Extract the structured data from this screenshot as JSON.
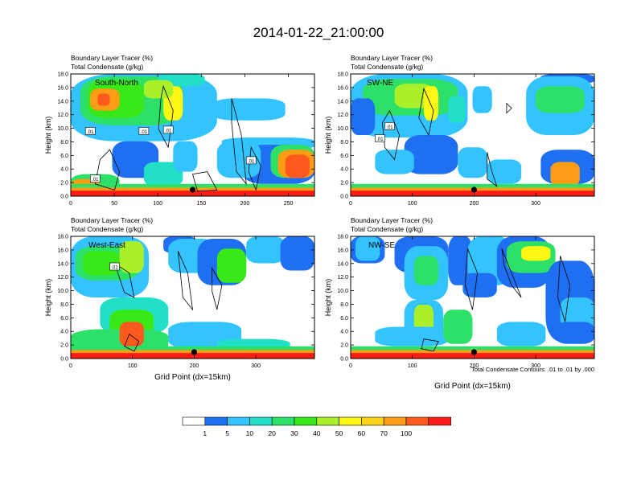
{
  "figure": {
    "title": "2014-01-22_21:00:00",
    "footnote": "Total Condensate Contours: .01 to .01 by .000",
    "colorbar": {
      "colors": [
        "#ffffff",
        "#1f6ff2",
        "#33c4ff",
        "#22e0c8",
        "#2de067",
        "#38e817",
        "#a9ef2a",
        "#fff713",
        "#ffd21a",
        "#ff9c16",
        "#ff5a1e",
        "#ff1c16"
      ],
      "labels": [
        "1",
        "5",
        "10",
        "20",
        "30",
        "40",
        "50",
        "60",
        "70",
        "100"
      ]
    }
  },
  "chart_data": [
    {
      "type": "heatmap",
      "panel": "South-North",
      "subtitle_line1": "Boundary Layer Tracer   (%)",
      "subtitle_line2": "Total Condensate   (g/kg)",
      "xlabel": "",
      "ylabel": "Height (km)",
      "xlim": [
        0,
        280
      ],
      "ylim": [
        0,
        18
      ],
      "xticks": [
        "0",
        "50",
        "100",
        "150",
        "200",
        "250"
      ],
      "xtick_values": [
        0,
        50,
        100,
        150,
        200,
        250
      ],
      "yticks": [
        "0.0",
        "2.0",
        "4.0",
        "6.0",
        "8.0",
        "10.0",
        "12.0",
        "14.0",
        "16.0",
        "18.0"
      ],
      "marker_x": 140,
      "contour_labels": [
        ".01",
        ".01",
        ".01",
        ".01",
        ".01"
      ]
    },
    {
      "type": "heatmap",
      "panel": "SW-NE",
      "subtitle_line1": "Boundary Layer Tracer   (%)",
      "subtitle_line2": "Total Condensate   (g/kg)",
      "xlabel": "",
      "ylabel": "Height (km)",
      "xlim": [
        0,
        395
      ],
      "ylim": [
        0,
        18
      ],
      "xticks": [
        "0",
        "100",
        "200",
        "300"
      ],
      "xtick_values": [
        0,
        100,
        200,
        300
      ],
      "yticks": [
        "0.0",
        "2.0",
        "4.0",
        "6.0",
        "8.0",
        "10.0",
        "12.0",
        "14.0",
        "16.0",
        "18.0"
      ],
      "marker_x": 200,
      "contour_labels": [
        ".01",
        ".01"
      ]
    },
    {
      "type": "heatmap",
      "panel": "West-East",
      "subtitle_line1": "Boundary Layer Tracer   (%)",
      "subtitle_line2": "Total Condensate   (g/kg)",
      "xlabel": "Grid Point (dx=15km)",
      "ylabel": "Height (km)",
      "xlim": [
        0,
        395
      ],
      "ylim": [
        0,
        18
      ],
      "xticks": [
        "0",
        "100",
        "200",
        "300"
      ],
      "xtick_values": [
        0,
        100,
        200,
        300
      ],
      "yticks": [
        "0.0",
        "2.0",
        "4.0",
        "6.0",
        "8.0",
        "10.0",
        "12.0",
        "14.0",
        "16.0",
        "18.0"
      ],
      "marker_x": 200,
      "contour_labels": [
        ".01"
      ]
    },
    {
      "type": "heatmap",
      "panel": "NW-SE",
      "subtitle_line1": "Boundary Layer Tracer   (%)",
      "subtitle_line2": "Total Condensate   (g/kg)",
      "xlabel": "Grid Point (dx=15km)",
      "ylabel": "Height (km)",
      "xlim": [
        0,
        395
      ],
      "ylim": [
        0,
        18
      ],
      "xticks": [
        "0",
        "100",
        "200",
        "300"
      ],
      "xtick_values": [
        0,
        100,
        200,
        300
      ],
      "yticks": [
        "0.0",
        "2.0",
        "4.0",
        "6.0",
        "8.0",
        "10.0",
        "12.0",
        "14.0",
        "16.0",
        "18.0"
      ],
      "marker_x": 200,
      "contour_labels": []
    }
  ]
}
